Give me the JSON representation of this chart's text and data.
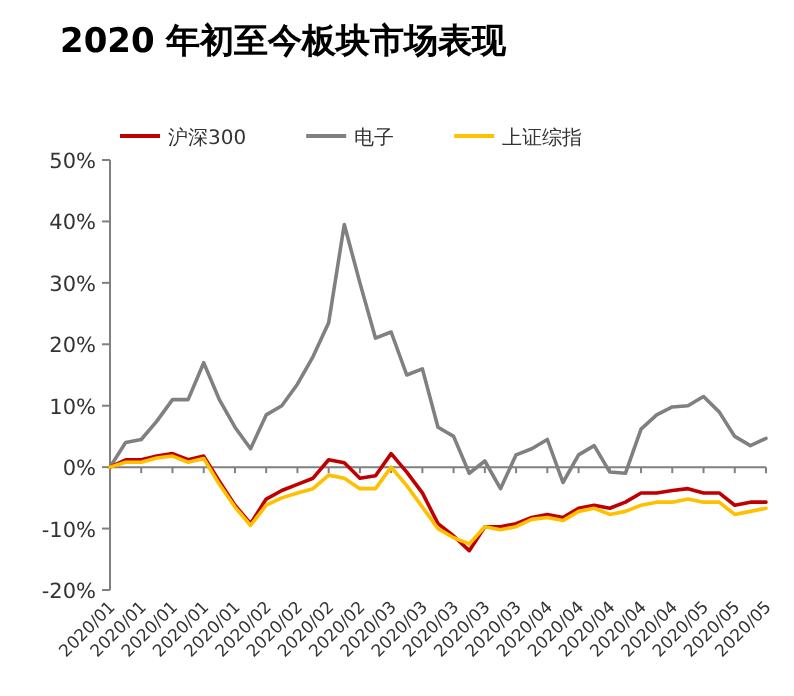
{
  "chart_data": {
    "type": "line",
    "title": "2020 年初至今板块市场表现",
    "categories": [
      "2020/01",
      null,
      "2020/01",
      null,
      "2020/01",
      null,
      "2020/01",
      null,
      "2020/01",
      null,
      "2020/02",
      null,
      "2020/02",
      null,
      "2020/02",
      null,
      "2020/02",
      null,
      "2020/03",
      null,
      "2020/03",
      null,
      "2020/03",
      null,
      "2020/03",
      null,
      "2020/03",
      null,
      "2020/04",
      null,
      "2020/04",
      null,
      "2020/04",
      null,
      "2020/04",
      null,
      "2020/04",
      null,
      "2020/05",
      null,
      "2020/05",
      null,
      "2020/05"
    ],
    "series": [
      {
        "name": "沪深300",
        "color": "#c00000",
        "values": [
          0,
          1.2,
          1.2,
          1.8,
          2.2,
          1.2,
          1.8,
          -2.3,
          -6.2,
          -9.2,
          -5.2,
          -3.8,
          -2.8,
          -1.8,
          1.2,
          0.7,
          -1.8,
          -1.4,
          2.2,
          -0.8,
          -4.2,
          -9.2,
          -11.2,
          -13.6,
          -9.7,
          -9.7,
          -9.2,
          -8.2,
          -7.7,
          -8.2,
          -6.7,
          -6.2,
          -6.7,
          -5.7,
          -4.2,
          -4.2,
          -3.8,
          -3.5,
          -4.2,
          -4.2,
          -6.2,
          -5.7,
          -5.7
        ]
      },
      {
        "name": "电子",
        "color": "#808080",
        "values": [
          0,
          4,
          4.5,
          7.5,
          11,
          11,
          17,
          11,
          6.5,
          3,
          8.5,
          10,
          13.5,
          18,
          23.5,
          39.5,
          30,
          21,
          22,
          15,
          16,
          6.5,
          5,
          -1,
          1,
          -3.5,
          2,
          3,
          4.5,
          -2.5,
          2,
          3.5,
          -0.8,
          -1,
          6.2,
          8.5,
          9.8,
          10,
          11.5,
          9,
          5,
          3.5,
          4.7
        ]
      },
      {
        "name": "上证综指",
        "color": "#ffc000",
        "values": [
          0,
          0.8,
          0.8,
          1.5,
          1.8,
          0.8,
          1.4,
          -2.8,
          -6.5,
          -9.5,
          -6.2,
          -5,
          -4.2,
          -3.5,
          -1.3,
          -1.8,
          -3.5,
          -3.5,
          0,
          -3,
          -6.5,
          -10,
          -11.5,
          -12.5,
          -9.7,
          -10.2,
          -9.7,
          -8.5,
          -8.2,
          -8.7,
          -7.2,
          -6.7,
          -7.7,
          -7.2,
          -6.2,
          -5.7,
          -5.7,
          -5.2,
          -5.7,
          -5.7,
          -7.7,
          -7.2,
          -6.7
        ]
      }
    ],
    "ylim": [
      -20,
      50
    ],
    "yticks": [
      {
        "value": 50,
        "label": "50%"
      },
      {
        "value": 40,
        "label": "40%"
      },
      {
        "value": 30,
        "label": "30%"
      },
      {
        "value": 20,
        "label": "20%"
      },
      {
        "value": 10,
        "label": "10%"
      },
      {
        "value": 0,
        "label": "0%"
      },
      {
        "value": -10,
        "label": "-10%"
      },
      {
        "value": -20,
        "label": "-20%"
      }
    ],
    "ref_lines": [
      {
        "axis": "y",
        "value": 0,
        "color": "#808080",
        "line_style": "solid"
      }
    ],
    "grid": false,
    "legend": "top",
    "marker": "none",
    "line_style": "solid"
  }
}
